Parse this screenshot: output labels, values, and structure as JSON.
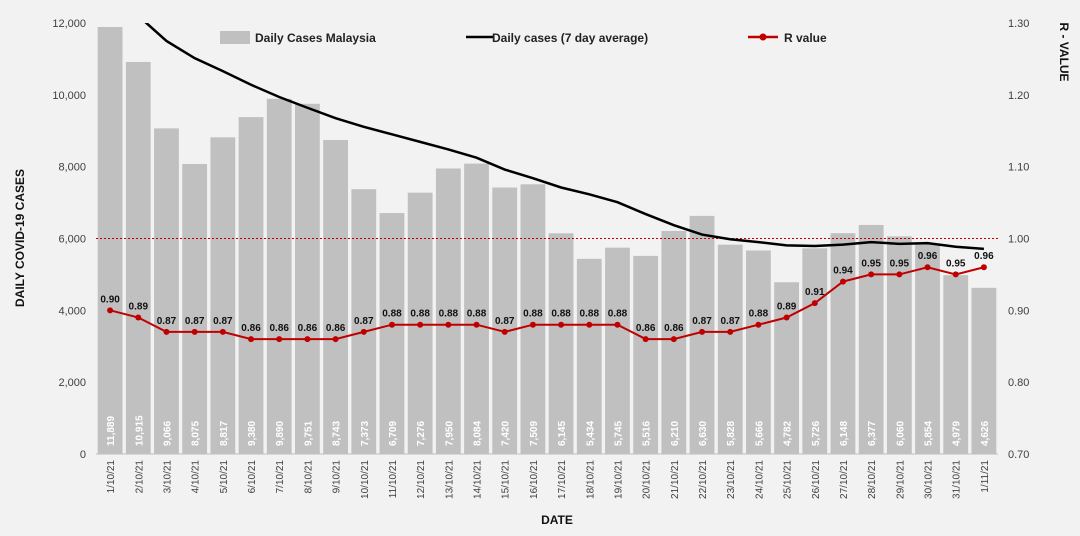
{
  "chart_data": {
    "type": "bar",
    "categories": [
      "1/10/21",
      "2/10/21",
      "3/10/21",
      "4/10/21",
      "5/10/21",
      "6/10/21",
      "7/10/21",
      "8/10/21",
      "9/10/21",
      "10/10/21",
      "11/10/21",
      "12/10/21",
      "13/10/21",
      "14/10/21",
      "15/10/21",
      "16/10/21",
      "17/10/21",
      "18/10/21",
      "19/10/21",
      "20/10/21",
      "21/10/21",
      "22/10/21",
      "23/10/21",
      "24/10/21",
      "25/10/21",
      "26/10/21",
      "27/10/21",
      "28/10/21",
      "29/10/21",
      "30/10/21",
      "31/10/21",
      "1/11/21"
    ],
    "series": [
      {
        "name": "Daily Cases Malaysia",
        "type": "bar",
        "axis": "left",
        "color": "#c0c0c0",
        "values": [
          11889,
          10915,
          9066,
          8075,
          8817,
          9380,
          9890,
          9751,
          8743,
          7373,
          6709,
          7276,
          7950,
          8084,
          7420,
          7509,
          6145,
          5434,
          5745,
          5516,
          6210,
          6630,
          5828,
          5666,
          4782,
          5726,
          6148,
          6377,
          6060,
          5854,
          4979,
          4626
        ],
        "labels": [
          "11,889",
          "10,915",
          "9,066",
          "8,075",
          "8,817",
          "9,380",
          "9,890",
          "9,751",
          "8,743",
          "7,373",
          "6,709",
          "7,276",
          "7,950",
          "8,084",
          "7,420",
          "7,509",
          "6,145",
          "5,434",
          "5,745",
          "5,516",
          "6,210",
          "6,630",
          "5,828",
          "5,666",
          "4,782",
          "5,726",
          "6,148",
          "6,377",
          "6,060",
          "5,854",
          "4,979",
          "4,626"
        ]
      },
      {
        "name": "Daily cases (7 day average)",
        "type": "line",
        "axis": "left",
        "color": "#000000",
        "values": [
          13080,
          12200,
          11500,
          11020,
          10660,
          10280,
          9940,
          9640,
          9350,
          9110,
          8900,
          8690,
          8480,
          8250,
          7920,
          7680,
          7420,
          7230,
          7010,
          6680,
          6370,
          6110,
          5980,
          5900,
          5810,
          5790,
          5830,
          5900,
          5850,
          5870,
          5770,
          5710
        ]
      },
      {
        "name": "R value",
        "type": "line",
        "axis": "right",
        "color": "#c00000",
        "values": [
          0.9,
          0.89,
          0.87,
          0.87,
          0.87,
          0.86,
          0.86,
          0.86,
          0.86,
          0.87,
          0.88,
          0.88,
          0.88,
          0.88,
          0.87,
          0.88,
          0.88,
          0.88,
          0.88,
          0.86,
          0.86,
          0.87,
          0.87,
          0.88,
          0.89,
          0.91,
          0.94,
          0.95,
          0.95,
          0.96,
          0.95,
          0.96
        ],
        "labels": [
          "0.90",
          "0.89",
          "0.87",
          "0.87",
          "0.87",
          "0.86",
          "0.86",
          "0.86",
          "0.86",
          "0.87",
          "0.88",
          "0.88",
          "0.88",
          "0.88",
          "0.87",
          "0.88",
          "0.88",
          "0.88",
          "0.88",
          "0.86",
          "0.86",
          "0.87",
          "0.87",
          "0.88",
          "0.89",
          "0.91",
          "0.94",
          "0.95",
          "0.95",
          "0.96",
          "0.95",
          "0.96"
        ]
      }
    ],
    "xlabel": "DATE",
    "ylabel": "DAILY COVID-19 CASES",
    "y2label": "R - VALUE",
    "ylim": [
      0,
      12000
    ],
    "y_ticks": [
      "0",
      "2,000",
      "4,000",
      "6,000",
      "8,000",
      "10,000",
      "12,000"
    ],
    "y2lim": [
      0.7,
      1.3
    ],
    "y2_ticks": [
      "0.70",
      "0.80",
      "0.90",
      "1.00",
      "1.10",
      "1.20",
      "1.30"
    ],
    "reference_line_r": 1.0,
    "reference_line_color": "#c00000",
    "legend_placement": "top",
    "grid": false
  }
}
